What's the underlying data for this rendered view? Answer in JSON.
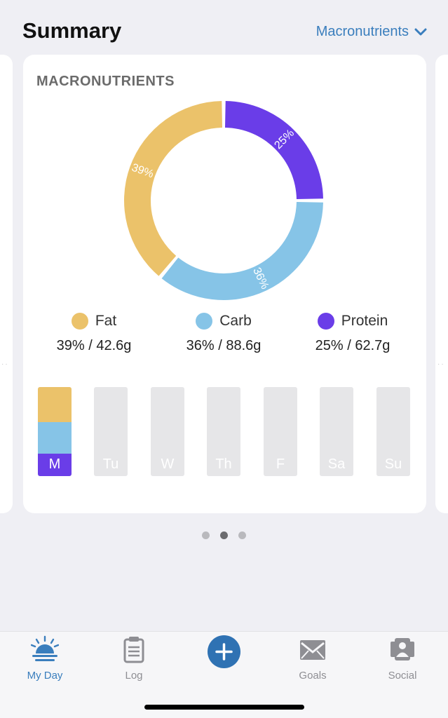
{
  "header": {
    "title": "Summary",
    "view_selector": "Macronutrients"
  },
  "card": {
    "title": "MACRONUTRIENTS"
  },
  "chart_data": {
    "type": "pie",
    "title": "MACRONUTRIENTS",
    "categories": [
      "Protein",
      "Carb",
      "Fat"
    ],
    "values": [
      25,
      36,
      39
    ],
    "labels": [
      "25%",
      "36%",
      "39%"
    ],
    "colors": [
      "#6a3de8",
      "#86c4e7",
      "#ebc26a"
    ]
  },
  "legend": [
    {
      "name": "Fat",
      "value": "39% / 42.6g",
      "color": "#ebc26a"
    },
    {
      "name": "Carb",
      "value": "36% / 88.6g",
      "color": "#86c4e7"
    },
    {
      "name": "Protein",
      "value": "25% / 62.7g",
      "color": "#6a3de8"
    }
  ],
  "days": [
    {
      "label": "M",
      "filled": true,
      "fat": 39,
      "carb": 36,
      "protein": 25
    },
    {
      "label": "Tu",
      "filled": false
    },
    {
      "label": "W",
      "filled": false
    },
    {
      "label": "Th",
      "filled": false
    },
    {
      "label": "F",
      "filled": false
    },
    {
      "label": "Sa",
      "filled": false
    },
    {
      "label": "Su",
      "filled": false
    }
  ],
  "pager": {
    "pages": 3,
    "active": 1
  },
  "tabs": [
    {
      "label": "My Day",
      "icon": "sunrise-icon",
      "active": true
    },
    {
      "label": "Log",
      "icon": "clipboard-icon",
      "active": false
    },
    {
      "label": "Goals",
      "icon": "mountain-flag-icon",
      "active": false
    },
    {
      "label": "Social",
      "icon": "people-icon",
      "active": false
    }
  ],
  "colors": {
    "accent": "#3a7ebd",
    "add_button": "#2f72b3",
    "fat": "#ebc26a",
    "carb": "#86c4e7",
    "protein": "#6a3de8"
  }
}
